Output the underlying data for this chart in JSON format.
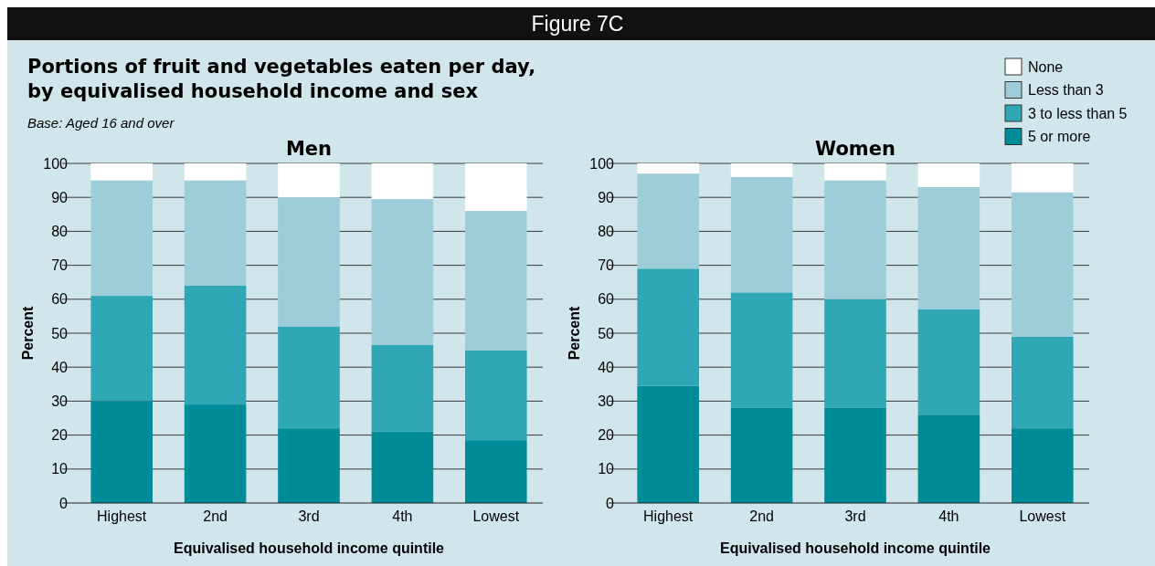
{
  "chart_data": [
    {
      "type": "other",
      "title": "Portions of fruit and vegetables eaten per day,\nby equivalised household income and sex",
      "subtitle": "Base: Aged 16 and over",
      "annotations": [
        "Figure 7C"
      ]
    },
    {
      "type": "bar",
      "title": "Men",
      "stacked": true,
      "xlabel": "Equivalised household income quintile",
      "ylabel": "Percent",
      "categories": [
        "Highest",
        "2nd",
        "3rd",
        "4th",
        "Lowest"
      ],
      "ylim": [
        0,
        100
      ],
      "yticks": [
        0,
        10,
        20,
        30,
        40,
        50,
        60,
        70,
        80,
        90,
        100
      ],
      "grid": "y",
      "series": [
        {
          "color": "#008b98",
          "values": [
            30,
            29,
            22,
            21,
            18.5
          ]
        },
        {
          "color": "#30a7b4",
          "values": [
            31,
            35,
            30,
            25.5,
            26.5
          ]
        },
        {
          "color": "#9ccdd8",
          "values": [
            34,
            31,
            38,
            43,
            41
          ]
        },
        {
          "color": "#ffffff",
          "values": [
            5,
            5,
            10,
            10.5,
            14
          ]
        }
      ]
    },
    {
      "type": "bar",
      "title": "Women",
      "stacked": true,
      "xlabel": "Equivalised household income quintile",
      "ylabel": "Percent",
      "categories": [
        "Highest",
        "2nd",
        "3rd",
        "4th",
        "Lowest"
      ],
      "ylim": [
        0,
        100
      ],
      "yticks": [
        0,
        10,
        20,
        30,
        40,
        50,
        60,
        70,
        80,
        90,
        100
      ],
      "grid": "y",
      "legend": "top right",
      "series": [
        {
          "name": "5 or more",
          "color": "#008b98",
          "values": [
            34.5,
            28,
            28,
            26,
            22
          ]
        },
        {
          "name": "3 to less than 5",
          "color": "#30a7b4",
          "values": [
            34.5,
            34,
            32,
            31,
            27
          ]
        },
        {
          "name": "Less than 3",
          "color": "#9ccdd8",
          "values": [
            28,
            34,
            35,
            36,
            42.5
          ]
        },
        {
          "name": "None",
          "color": "#ffffff",
          "values": [
            3,
            4,
            5,
            7,
            8.5
          ]
        }
      ]
    }
  ]
}
